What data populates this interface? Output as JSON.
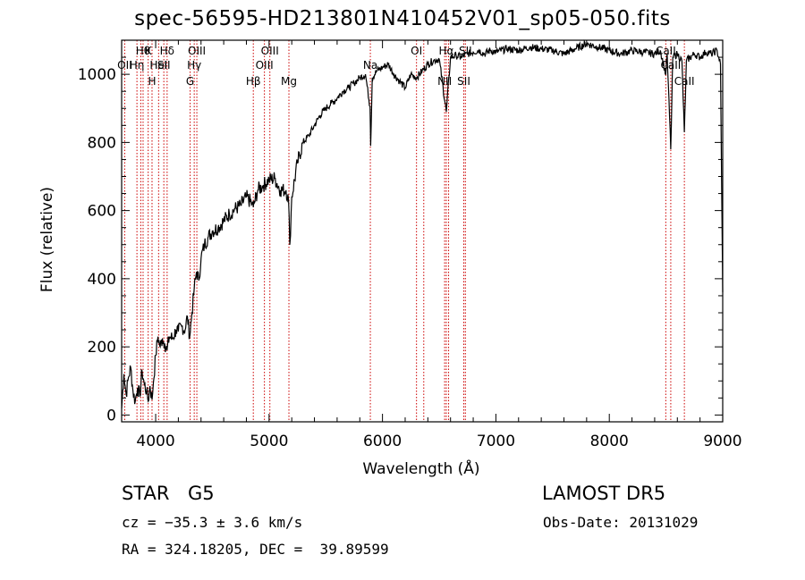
{
  "title": "spec-56595-HD213801N410452V01_sp05-050.fits",
  "footer": {
    "class_label": "STAR",
    "subclass_label": "G5",
    "survey": "LAMOST DR5",
    "cz": "cz = −35.3 ± 3.6 km/s",
    "obs_date": "Obs-Date: 20131029",
    "radec": "RA = 324.18205, DEC =  39.89599"
  },
  "chart_data": {
    "type": "line",
    "title": "spec-56595-HD213801N410452V01_sp05-050.fits",
    "xlabel": "Wavelength (Å)",
    "ylabel": "Flux (relative)",
    "xlim": [
      3700,
      9000
    ],
    "ylim": [
      -20,
      1100
    ],
    "xticks": [
      4000,
      5000,
      6000,
      7000,
      8000,
      9000
    ],
    "yticks": [
      0,
      200,
      400,
      600,
      800,
      1000
    ],
    "grid": false,
    "line_color": "#000000",
    "marker_color": "#cc0000",
    "spectrum": [
      [
        3700,
        20
      ],
      [
        3720,
        120
      ],
      [
        3740,
        60
      ],
      [
        3760,
        110
      ],
      [
        3780,
        140
      ],
      [
        3800,
        70
      ],
      [
        3820,
        40
      ],
      [
        3840,
        80
      ],
      [
        3860,
        55
      ],
      [
        3880,
        130
      ],
      [
        3900,
        90
      ],
      [
        3920,
        70
      ],
      [
        3934,
        40
      ],
      [
        3950,
        85
      ],
      [
        3968,
        45
      ],
      [
        3980,
        95
      ],
      [
        4000,
        175
      ],
      [
        4020,
        230
      ],
      [
        4040,
        200
      ],
      [
        4060,
        225
      ],
      [
        4080,
        210
      ],
      [
        4101,
        190
      ],
      [
        4120,
        230
      ],
      [
        4150,
        225
      ],
      [
        4180,
        250
      ],
      [
        4200,
        245
      ],
      [
        4230,
        260
      ],
      [
        4260,
        250
      ],
      [
        4280,
        290
      ],
      [
        4300,
        230
      ],
      [
        4320,
        300
      ],
      [
        4340,
        370
      ],
      [
        4360,
        420
      ],
      [
        4380,
        395
      ],
      [
        4400,
        460
      ],
      [
        4430,
        500
      ],
      [
        4460,
        520
      ],
      [
        4500,
        540
      ],
      [
        4550,
        550
      ],
      [
        4600,
        570
      ],
      [
        4650,
        590
      ],
      [
        4700,
        605
      ],
      [
        4750,
        615
      ],
      [
        4800,
        640
      ],
      [
        4850,
        620
      ],
      [
        4861,
        610
      ],
      [
        4900,
        660
      ],
      [
        4950,
        675
      ],
      [
        5000,
        690
      ],
      [
        5050,
        695
      ],
      [
        5100,
        660
      ],
      [
        5150,
        660
      ],
      [
        5172,
        630
      ],
      [
        5183,
        500
      ],
      [
        5200,
        640
      ],
      [
        5250,
        740
      ],
      [
        5300,
        800
      ],
      [
        5350,
        820
      ],
      [
        5400,
        850
      ],
      [
        5450,
        880
      ],
      [
        5500,
        900
      ],
      [
        5550,
        915
      ],
      [
        5600,
        930
      ],
      [
        5650,
        950
      ],
      [
        5700,
        960
      ],
      [
        5750,
        975
      ],
      [
        5800,
        990
      ],
      [
        5850,
        1000
      ],
      [
        5890,
        905
      ],
      [
        5896,
        790
      ],
      [
        5910,
        990
      ],
      [
        5950,
        1010
      ],
      [
        6000,
        1020
      ],
      [
        6050,
        1030
      ],
      [
        6100,
        1000
      ],
      [
        6150,
        980
      ],
      [
        6200,
        960
      ],
      [
        6250,
        1000
      ],
      [
        6300,
        990
      ],
      [
        6350,
        1010
      ],
      [
        6400,
        1030
      ],
      [
        6450,
        1040
      ],
      [
        6500,
        1045
      ],
      [
        6563,
        890
      ],
      [
        6600,
        1050
      ],
      [
        6650,
        1055
      ],
      [
        6700,
        1050
      ],
      [
        6750,
        1060
      ],
      [
        6800,
        1065
      ],
      [
        6850,
        1070
      ],
      [
        6900,
        1060
      ],
      [
        6950,
        1070
      ],
      [
        7000,
        1065
      ],
      [
        7100,
        1075
      ],
      [
        7200,
        1070
      ],
      [
        7300,
        1080
      ],
      [
        7400,
        1075
      ],
      [
        7500,
        1070
      ],
      [
        7600,
        1060
      ],
      [
        7700,
        1075
      ],
      [
        7800,
        1090
      ],
      [
        7900,
        1080
      ],
      [
        8000,
        1070
      ],
      [
        8100,
        1060
      ],
      [
        8200,
        1070
      ],
      [
        8300,
        1065
      ],
      [
        8400,
        1060
      ],
      [
        8450,
        1070
      ],
      [
        8498,
        1000
      ],
      [
        8510,
        1060
      ],
      [
        8542,
        780
      ],
      [
        8560,
        1050
      ],
      [
        8600,
        1060
      ],
      [
        8640,
        1040
      ],
      [
        8662,
        830
      ],
      [
        8680,
        1040
      ],
      [
        8750,
        1060
      ],
      [
        8800,
        1050
      ],
      [
        8850,
        1065
      ],
      [
        8900,
        1060
      ],
      [
        8950,
        1070
      ],
      [
        8980,
        1030
      ],
      [
        9000,
        360
      ]
    ],
    "lines": [
      {
        "wavelength": 3727,
        "label": "OII",
        "row": 1
      },
      {
        "wavelength": 3835,
        "label": "Hη",
        "row": 1
      },
      {
        "wavelength": 3869,
        "label": "",
        "row": 1
      },
      {
        "wavelength": 3889,
        "label": "Hθ",
        "row": 0
      },
      {
        "wavelength": 3934,
        "label": "K",
        "row": 0
      },
      {
        "wavelength": 3968,
        "label": "H",
        "row": 2
      },
      {
        "wavelength": 4026,
        "label": "HeI",
        "row": 1
      },
      {
        "wavelength": 4072,
        "label": "SII",
        "row": 1
      },
      {
        "wavelength": 4101,
        "label": "Hδ",
        "row": 0
      },
      {
        "wavelength": 4304,
        "label": "G",
        "row": 2
      },
      {
        "wavelength": 4340,
        "label": "Hγ",
        "row": 1
      },
      {
        "wavelength": 4363,
        "label": "OIII",
        "row": 0
      },
      {
        "wavelength": 4861,
        "label": "Hβ",
        "row": 2
      },
      {
        "wavelength": 4959,
        "label": "OIII",
        "row": 1
      },
      {
        "wavelength": 5007,
        "label": "OIII",
        "row": 0
      },
      {
        "wavelength": 5175,
        "label": "Mg",
        "row": 2
      },
      {
        "wavelength": 5893,
        "label": "Na",
        "row": 1
      },
      {
        "wavelength": 6300,
        "label": "OI",
        "row": 0
      },
      {
        "wavelength": 6364,
        "label": "",
        "row": 0
      },
      {
        "wavelength": 6548,
        "label": "NII",
        "row": 2
      },
      {
        "wavelength": 6563,
        "label": "Hα",
        "row": 0
      },
      {
        "wavelength": 6583,
        "label": "",
        "row": 2
      },
      {
        "wavelength": 6717,
        "label": "SII",
        "row": 2
      },
      {
        "wavelength": 6731,
        "label": "SII",
        "row": 0
      },
      {
        "wavelength": 8498,
        "label": "CaII",
        "row": 0
      },
      {
        "wavelength": 8542,
        "label": "CaII",
        "row": 1
      },
      {
        "wavelength": 8662,
        "label": "CaII",
        "row": 2
      }
    ]
  }
}
